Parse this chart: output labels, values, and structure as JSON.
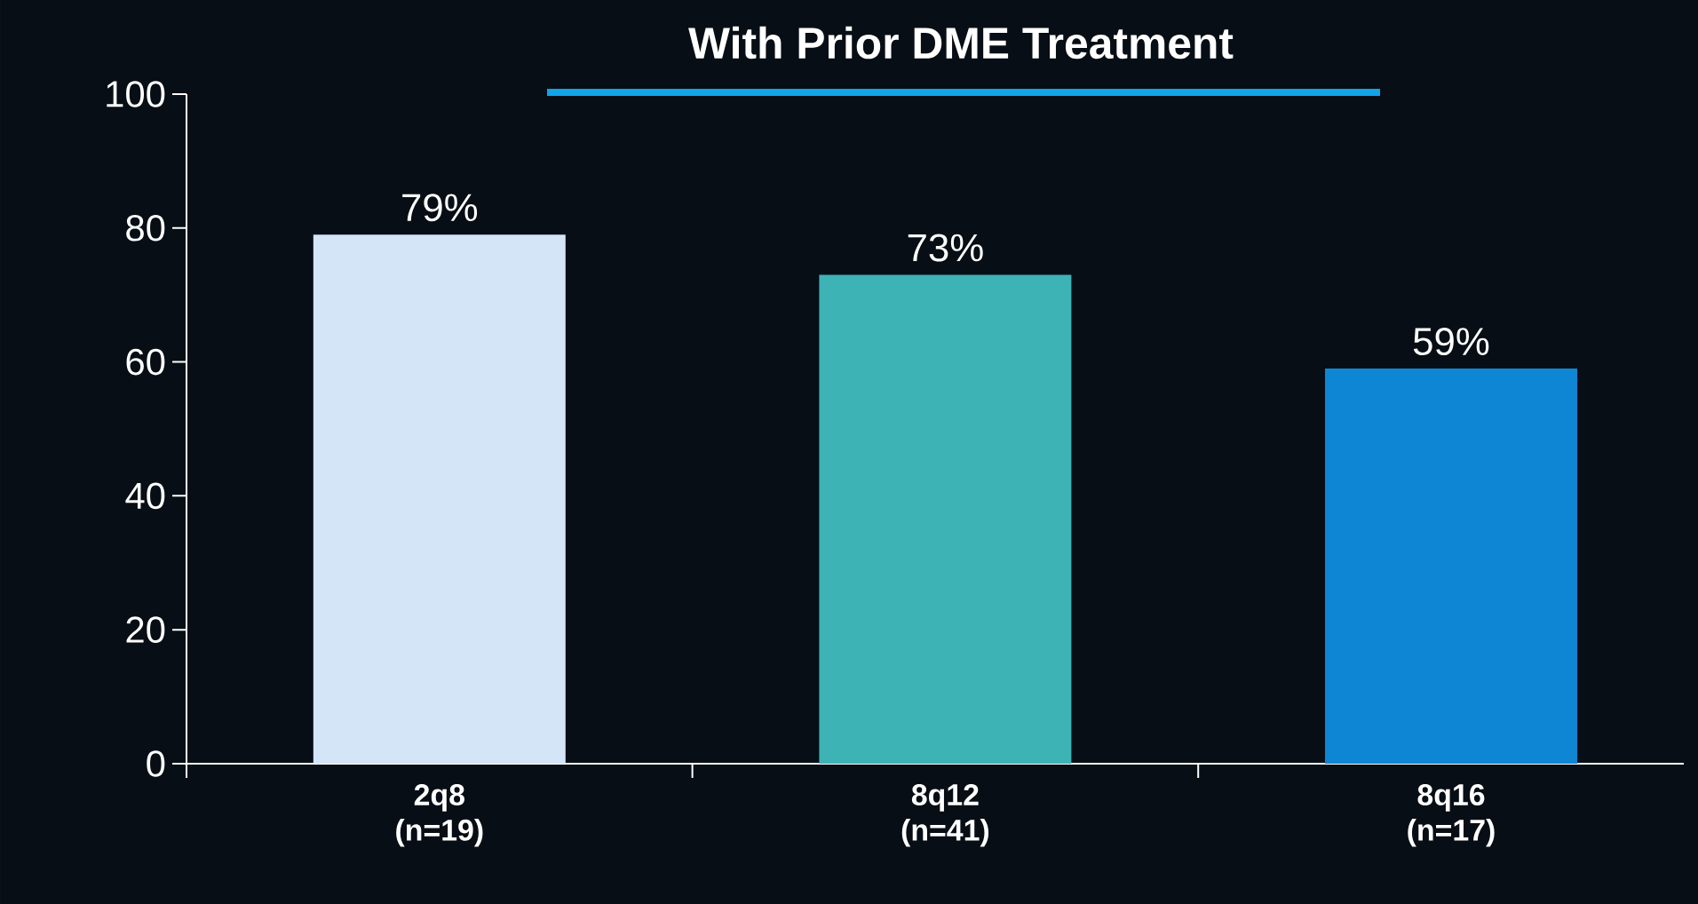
{
  "chart_data": {
    "type": "bar",
    "title": "With Prior DME Treatment",
    "categories": [
      "2q8 (n=19)",
      "8q12 (n=41)",
      "8q16 (n=17)"
    ],
    "values": [
      79,
      73,
      59
    ],
    "colors": [
      "#d4e5f7",
      "#3db3b6",
      "#0e86d4"
    ],
    "value_labels": [
      "79%",
      "73%",
      "59%"
    ],
    "ylim": [
      0,
      100
    ],
    "yticks": [
      0,
      20,
      40,
      60,
      80,
      100
    ],
    "grid": false
  }
}
